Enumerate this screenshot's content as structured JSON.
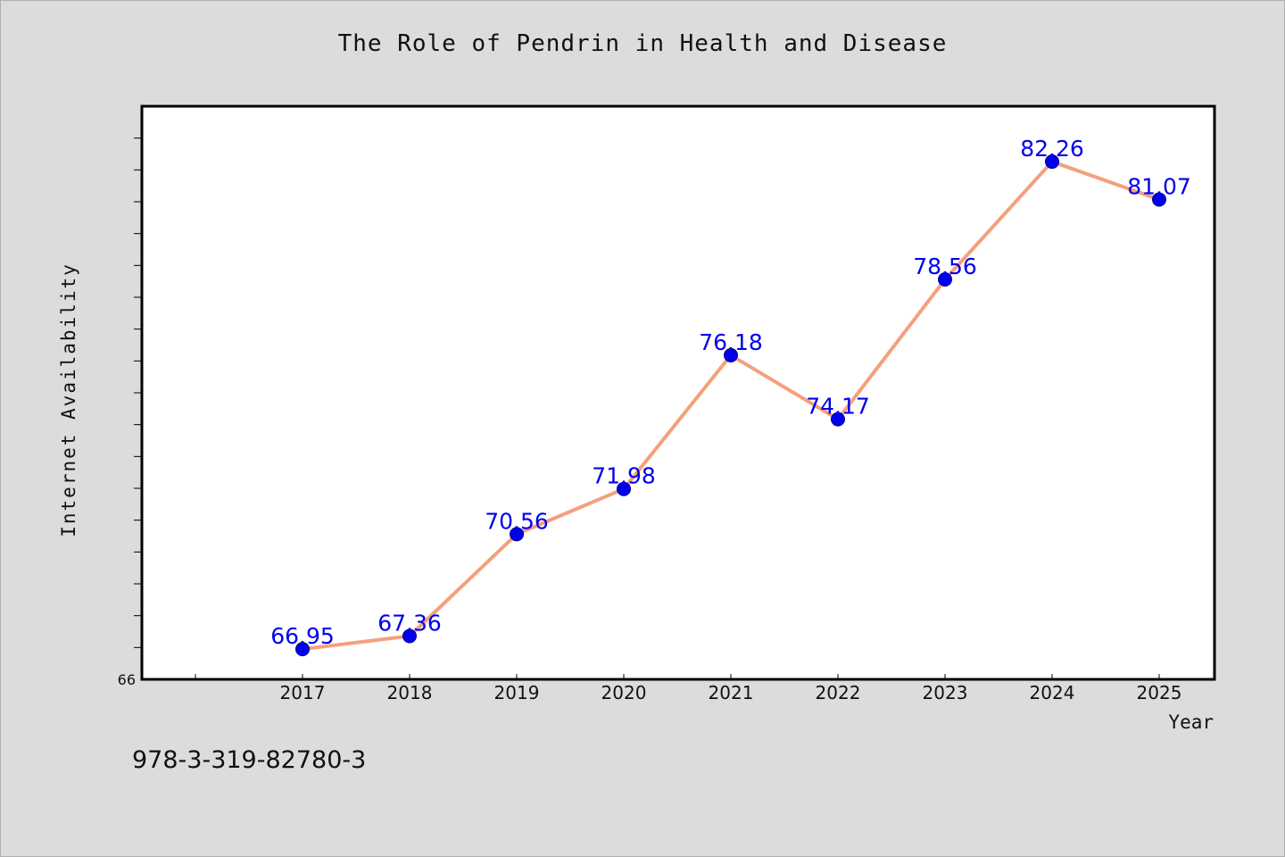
{
  "chart_data": {
    "type": "line",
    "title": "The Role of Pendrin in Health and Disease",
    "xlabel": "Year",
    "ylabel": "Internet Availability",
    "x": [
      "2017",
      "2018",
      "2019",
      "2020",
      "2021",
      "2022",
      "2023",
      "2024",
      "2025"
    ],
    "series": [
      {
        "values": [
          66.95,
          67.36,
          70.56,
          71.98,
          76.18,
          74.17,
          78.56,
          82.26,
          81.07
        ],
        "line_color": "#f4a07e",
        "marker_color": "#0000ee",
        "label_color": "#0000ee"
      }
    ],
    "ylim": [
      66,
      84
    ],
    "y_tick_labels": [
      "66"
    ],
    "grid": false,
    "legend": "none"
  },
  "footer": {
    "isbn": "978-3-319-82780-3"
  }
}
